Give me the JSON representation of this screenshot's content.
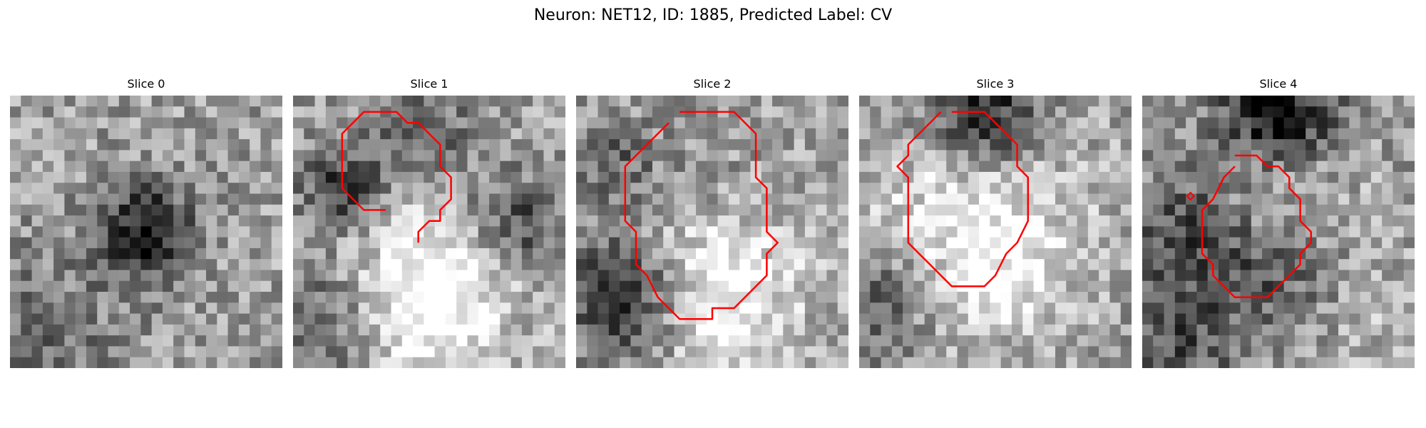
{
  "figure": {
    "title": "Neuron: NET12, ID: 1885, Predicted Label: CV"
  },
  "panels": [
    {
      "title": "Slice 0",
      "contour": []
    },
    {
      "title": "Slice 1",
      "contour": [
        [
          8.5,
          10.5
        ],
        [
          6.5,
          10.5
        ],
        [
          4.5,
          8.5
        ],
        [
          4.5,
          3.5
        ],
        [
          6.5,
          1.5
        ],
        [
          9.5,
          1.5
        ],
        [
          10.5,
          2.5
        ],
        [
          11.5,
          2.5
        ],
        [
          13.5,
          4.5
        ],
        [
          13.5,
          6.5
        ],
        [
          14.5,
          7.5
        ],
        [
          14.5,
          9.5
        ],
        [
          13.5,
          10.5
        ],
        [
          13.5,
          11.5
        ],
        [
          12.5,
          11.5
        ],
        [
          11.5,
          12.5
        ],
        [
          11.5,
          13.5
        ],
        [
          11.5,
          13.5
        ]
      ]
    },
    {
      "title": "Slice 2",
      "contour": [
        [
          9.5,
          1.5
        ],
        [
          14.5,
          1.5
        ],
        [
          16.5,
          3.5
        ],
        [
          16.5,
          7.5
        ],
        [
          17.5,
          8.5
        ],
        [
          17.5,
          12.5
        ],
        [
          18.5,
          13.5
        ],
        [
          17.5,
          14.5
        ],
        [
          17.5,
          16.5
        ],
        [
          15.5,
          18.5
        ],
        [
          14.5,
          19.5
        ],
        [
          12.5,
          19.5
        ],
        [
          12.5,
          20.5
        ],
        [
          9.5,
          20.5
        ],
        [
          7.5,
          18.5
        ],
        [
          6.5,
          16.5
        ],
        [
          5.5,
          15.5
        ],
        [
          5.5,
          12.5
        ],
        [
          4.5,
          11.5
        ],
        [
          4.5,
          6.5
        ],
        [
          6.5,
          4.5
        ],
        [
          8.5,
          2.5
        ]
      ]
    },
    {
      "title": "Slice 3",
      "contour": [
        [
          8.5,
          1.5
        ],
        [
          11.5,
          1.5
        ],
        [
          12.5,
          2.5
        ],
        [
          14.5,
          4.5
        ],
        [
          14.5,
          6.5
        ],
        [
          15.5,
          7.5
        ],
        [
          15.5,
          11.5
        ],
        [
          14.5,
          13.5
        ],
        [
          13.5,
          14.5
        ],
        [
          12.5,
          16.5
        ],
        [
          11.5,
          17.5
        ],
        [
          8.5,
          17.5
        ],
        [
          6.5,
          15.5
        ],
        [
          5.5,
          14.5
        ],
        [
          4.5,
          13.5
        ],
        [
          4.5,
          7.5
        ],
        [
          3.5,
          6.5
        ],
        [
          4.5,
          5.5
        ],
        [
          4.5,
          4.5
        ],
        [
          6.5,
          2.5
        ],
        [
          7.5,
          1.5
        ]
      ]
    },
    {
      "title": "Slice 4",
      "contour": [
        [
          8.5,
          5.5
        ],
        [
          10.5,
          5.5
        ],
        [
          11.5,
          6.5
        ],
        [
          12.5,
          6.5
        ],
        [
          13.5,
          7.5
        ],
        [
          13.5,
          8.5
        ],
        [
          14.5,
          9.5
        ],
        [
          14.5,
          11.5
        ],
        [
          15.5,
          12.5
        ],
        [
          15.5,
          13.5
        ],
        [
          14.5,
          14.5
        ],
        [
          14.5,
          15.5
        ],
        [
          13.5,
          16.5
        ],
        [
          12.5,
          17.5
        ],
        [
          11.5,
          18.5
        ],
        [
          8.5,
          18.5
        ],
        [
          7.5,
          17.5
        ],
        [
          6.5,
          16.5
        ],
        [
          6.5,
          15.5
        ],
        [
          5.5,
          14.5
        ],
        [
          5.5,
          10.5
        ],
        [
          6.5,
          9.5
        ],
        [
          7.5,
          7.5
        ],
        [
          8.5,
          6.5
        ]
      ]
    }
  ],
  "colors": {
    "contour": "#ff0000"
  }
}
